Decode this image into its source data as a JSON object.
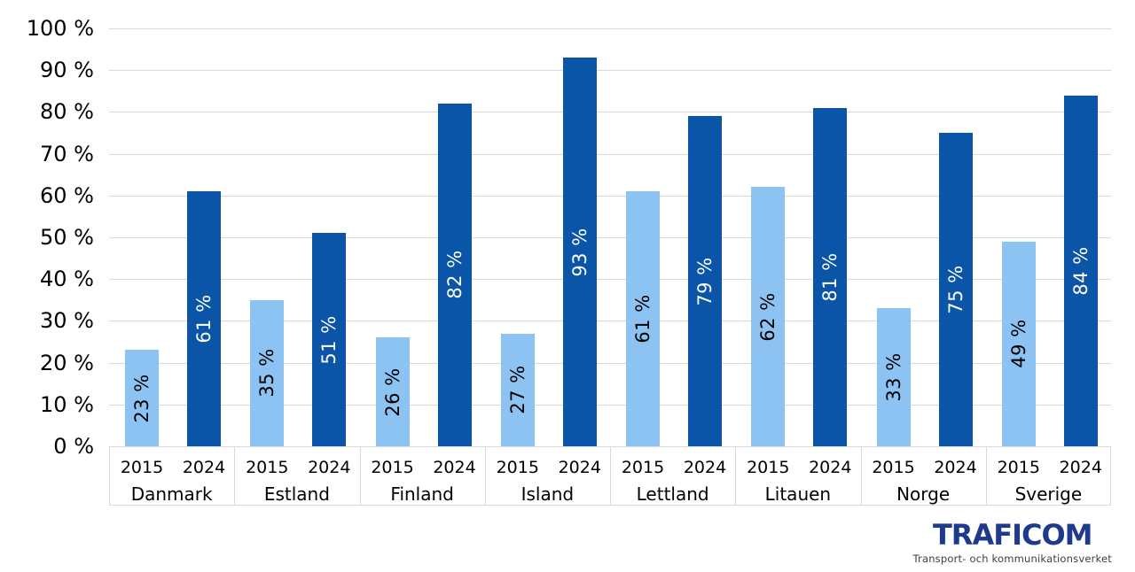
{
  "chart_data": {
    "type": "bar",
    "title": "",
    "xlabel": "",
    "ylabel": "",
    "ylim": [
      0,
      100
    ],
    "grid": "horizontal",
    "legend_position": "none (series year shown under each bar)",
    "categories": [
      "Danmark",
      "Estland",
      "Finland",
      "Island",
      "Lettland",
      "Litauen",
      "Norge",
      "Sverige"
    ],
    "series": [
      {
        "name": "2015",
        "color": "#8CC3F2",
        "label_color": "#000000",
        "values": [
          23,
          35,
          26,
          27,
          61,
          62,
          33,
          49
        ],
        "labels": [
          "23 %",
          "35 %",
          "26 %",
          "27 %",
          "61 %",
          "62 %",
          "33 %",
          "49 %"
        ]
      },
      {
        "name": "2024",
        "color": "#0A55A8",
        "label_color": "#FFFFFF",
        "values": [
          61,
          51,
          82,
          93,
          79,
          81,
          75,
          84
        ],
        "labels": [
          "61 %",
          "51 %",
          "82 %",
          "93 %",
          "79 %",
          "81 %",
          "75 %",
          "84 %"
        ]
      }
    ],
    "ytick_values": [
      0,
      10,
      20,
      30,
      40,
      50,
      60,
      70,
      80,
      90,
      100
    ],
    "ytick_labels": [
      "0 %",
      "10 %",
      "20 %",
      "30 %",
      "40 %",
      "50 %",
      "60 %",
      "70 %",
      "80 %",
      "90 %",
      "100 %"
    ],
    "value_label_rotation_deg": -90
  },
  "branding": {
    "logo_text": "TRAFICOM",
    "tagline": "Transport- och kommunikationsverket",
    "logo_color": "#1D3A8C"
  },
  "colors": {
    "background": "#FFFFFF",
    "gridline": "#D9D9D9",
    "axis_text": "#000000"
  }
}
